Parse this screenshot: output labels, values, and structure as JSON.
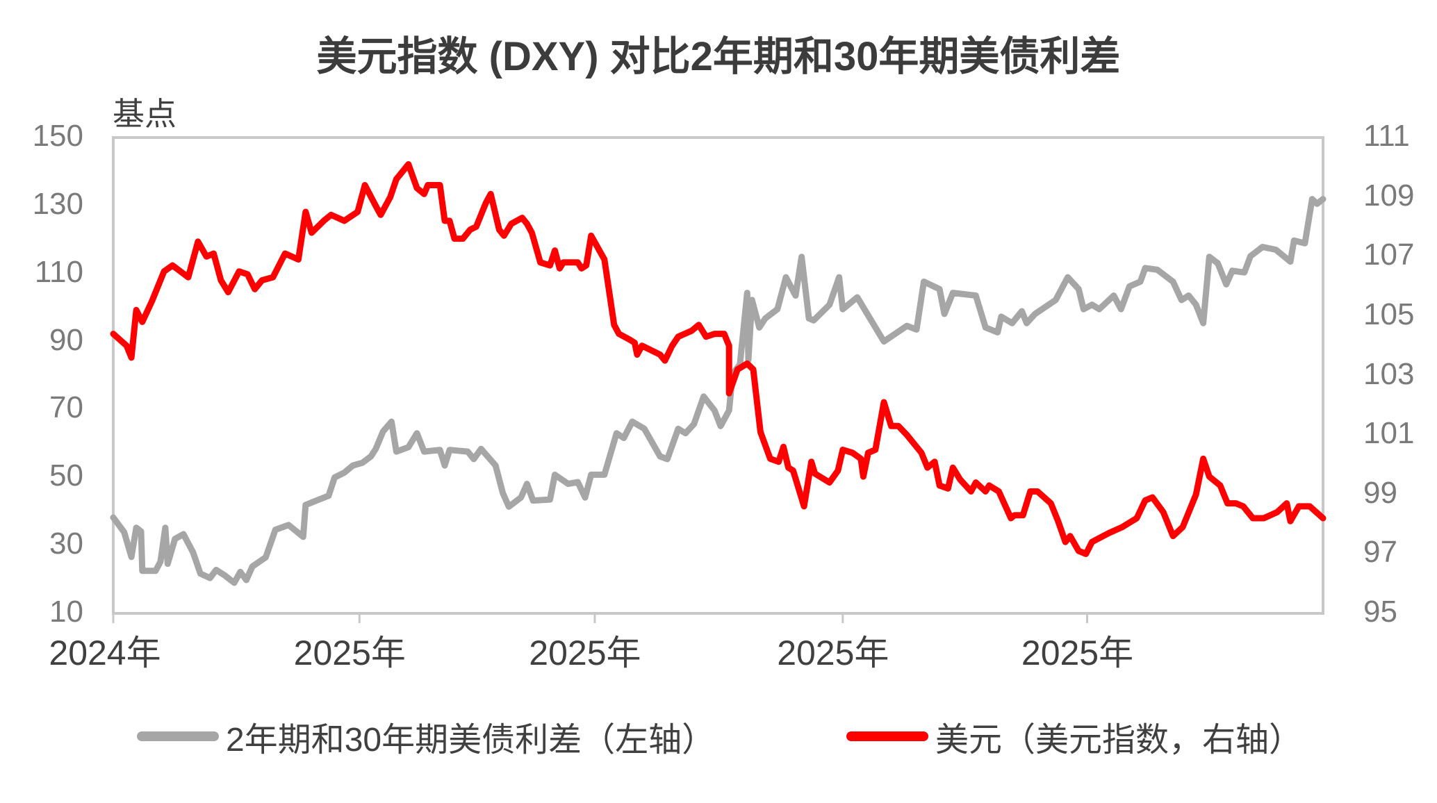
{
  "title": "美元指数 (DXY) 对比2年期和30年期美债利差",
  "left_unit": "基点",
  "colors": {
    "spread": "#a6a6a6",
    "dxy": "#ff0000",
    "frame": "#c8c8c8"
  },
  "legend": {
    "spread_label": "2年期和30年期美债利差（左轴）",
    "dxy_label": "美元（美元指数，右轴）"
  },
  "chart_data": {
    "type": "line",
    "title": "美元指数 (DXY) 对比2年期和30年期美债利差",
    "xlabel": "",
    "ylabel_left": "基点",
    "ylabel_right": "",
    "x_tick_labels": [
      "2024年",
      "2025年",
      "2025年",
      "2025年",
      "2025年"
    ],
    "x_tick_positions": [
      0.0,
      0.2035,
      0.398,
      0.603,
      0.805
    ],
    "y_left_ticks": [
      150,
      130,
      110,
      90,
      70,
      50,
      30,
      10
    ],
    "y_right_ticks": [
      111,
      109,
      107,
      105,
      103,
      101,
      99,
      97,
      95
    ],
    "y_left_range": [
      10,
      150
    ],
    "y_right_range": [
      95,
      111
    ],
    "grid": false,
    "legend_position": "bottom",
    "series": [
      {
        "name": "2年期和30年期美债利差（左轴）",
        "axis": "left",
        "color": "#a6a6a6",
        "points_x_fraction_value": [
          [
            0.0,
            38.2
          ],
          [
            0.009,
            33.9
          ],
          [
            0.015,
            26.6
          ],
          [
            0.019,
            35.2
          ],
          [
            0.023,
            34.1
          ],
          [
            0.024,
            22.5
          ],
          [
            0.035,
            22.5
          ],
          [
            0.039,
            25.2
          ],
          [
            0.043,
            35.2
          ],
          [
            0.045,
            24.6
          ],
          [
            0.051,
            31.9
          ],
          [
            0.058,
            33.3
          ],
          [
            0.066,
            27.9
          ],
          [
            0.072,
            21.7
          ],
          [
            0.08,
            20.4
          ],
          [
            0.085,
            22.8
          ],
          [
            0.092,
            21.2
          ],
          [
            0.1,
            19.0
          ],
          [
            0.105,
            22.2
          ],
          [
            0.11,
            19.8
          ],
          [
            0.115,
            23.8
          ],
          [
            0.126,
            26.5
          ],
          [
            0.134,
            34.6
          ],
          [
            0.145,
            36.0
          ],
          [
            0.157,
            32.5
          ],
          [
            0.159,
            41.9
          ],
          [
            0.168,
            43.2
          ],
          [
            0.178,
            44.6
          ],
          [
            0.183,
            50.0
          ],
          [
            0.191,
            51.4
          ],
          [
            0.198,
            53.5
          ],
          [
            0.206,
            54.3
          ],
          [
            0.213,
            56.2
          ],
          [
            0.217,
            58.4
          ],
          [
            0.223,
            63.5
          ],
          [
            0.23,
            66.4
          ],
          [
            0.234,
            57.6
          ],
          [
            0.244,
            58.9
          ],
          [
            0.251,
            63.0
          ],
          [
            0.257,
            57.6
          ],
          [
            0.27,
            58.1
          ],
          [
            0.274,
            53.5
          ],
          [
            0.278,
            58.1
          ],
          [
            0.293,
            57.6
          ],
          [
            0.298,
            55.4
          ],
          [
            0.304,
            58.4
          ],
          [
            0.316,
            53.5
          ],
          [
            0.322,
            45.4
          ],
          [
            0.327,
            41.4
          ],
          [
            0.337,
            44.1
          ],
          [
            0.342,
            48.1
          ],
          [
            0.347,
            43.2
          ],
          [
            0.361,
            43.5
          ],
          [
            0.365,
            50.8
          ],
          [
            0.376,
            48.1
          ],
          [
            0.384,
            48.6
          ],
          [
            0.39,
            44.1
          ],
          [
            0.395,
            50.8
          ],
          [
            0.406,
            50.8
          ],
          [
            0.416,
            63.0
          ],
          [
            0.422,
            61.6
          ],
          [
            0.429,
            66.4
          ],
          [
            0.439,
            64.3
          ],
          [
            0.452,
            56.2
          ],
          [
            0.458,
            55.4
          ],
          [
            0.467,
            64.3
          ],
          [
            0.473,
            63.0
          ],
          [
            0.48,
            65.7
          ],
          [
            0.488,
            73.8
          ],
          [
            0.497,
            69.7
          ],
          [
            0.502,
            65.1
          ],
          [
            0.509,
            69.7
          ],
          [
            0.512,
            80.5
          ],
          [
            0.518,
            83.2
          ],
          [
            0.524,
            104.3
          ],
          [
            0.525,
            84.6
          ],
          [
            0.528,
            102.2
          ],
          [
            0.534,
            94.1
          ],
          [
            0.539,
            96.8
          ],
          [
            0.549,
            99.5
          ],
          [
            0.556,
            108.9
          ],
          [
            0.564,
            103.5
          ],
          [
            0.569,
            114.9
          ],
          [
            0.575,
            96.8
          ],
          [
            0.579,
            96.2
          ],
          [
            0.592,
            100.8
          ],
          [
            0.6,
            108.9
          ],
          [
            0.603,
            99.5
          ],
          [
            0.615,
            103.0
          ],
          [
            0.637,
            90.0
          ],
          [
            0.656,
            94.6
          ],
          [
            0.664,
            93.5
          ],
          [
            0.67,
            107.6
          ],
          [
            0.683,
            105.4
          ],
          [
            0.687,
            98.1
          ],
          [
            0.694,
            104.3
          ],
          [
            0.713,
            103.5
          ],
          [
            0.721,
            94.1
          ],
          [
            0.731,
            92.7
          ],
          [
            0.734,
            97.3
          ],
          [
            0.743,
            95.4
          ],
          [
            0.751,
            98.9
          ],
          [
            0.755,
            95.4
          ],
          [
            0.762,
            98.1
          ],
          [
            0.779,
            102.2
          ],
          [
            0.789,
            108.9
          ],
          [
            0.798,
            105.4
          ],
          [
            0.802,
            99.5
          ],
          [
            0.809,
            100.8
          ],
          [
            0.815,
            99.5
          ],
          [
            0.827,
            103.5
          ],
          [
            0.833,
            99.5
          ],
          [
            0.84,
            106.2
          ],
          [
            0.849,
            107.6
          ],
          [
            0.853,
            111.6
          ],
          [
            0.863,
            111.1
          ],
          [
            0.876,
            107.6
          ],
          [
            0.883,
            102.2
          ],
          [
            0.889,
            103.5
          ],
          [
            0.895,
            100.8
          ],
          [
            0.901,
            95.4
          ],
          [
            0.906,
            114.9
          ],
          [
            0.913,
            113.0
          ],
          [
            0.92,
            106.8
          ],
          [
            0.925,
            110.8
          ],
          [
            0.935,
            110.3
          ],
          [
            0.94,
            115.1
          ],
          [
            0.95,
            117.8
          ],
          [
            0.961,
            117.0
          ],
          [
            0.973,
            113.5
          ],
          [
            0.976,
            119.7
          ],
          [
            0.985,
            118.9
          ],
          [
            0.991,
            131.9
          ],
          [
            0.995,
            130.5
          ],
          [
            1.0,
            131.9
          ]
        ]
      },
      {
        "name": "美元（美元指数，右轴）",
        "axis": "right",
        "color": "#ff0000",
        "points_x_fraction_value": [
          [
            0.0,
            104.4
          ],
          [
            0.011,
            104.0
          ],
          [
            0.015,
            103.6
          ],
          [
            0.019,
            105.2
          ],
          [
            0.024,
            104.8
          ],
          [
            0.032,
            105.5
          ],
          [
            0.042,
            106.5
          ],
          [
            0.049,
            106.7
          ],
          [
            0.062,
            106.3
          ],
          [
            0.07,
            107.5
          ],
          [
            0.077,
            107.0
          ],
          [
            0.083,
            107.1
          ],
          [
            0.089,
            106.2
          ],
          [
            0.095,
            105.8
          ],
          [
            0.104,
            106.5
          ],
          [
            0.111,
            106.4
          ],
          [
            0.117,
            105.9
          ],
          [
            0.123,
            106.2
          ],
          [
            0.132,
            106.3
          ],
          [
            0.142,
            107.1
          ],
          [
            0.153,
            106.9
          ],
          [
            0.159,
            108.5
          ],
          [
            0.164,
            107.8
          ],
          [
            0.174,
            108.2
          ],
          [
            0.18,
            108.4
          ],
          [
            0.191,
            108.2
          ],
          [
            0.202,
            108.5
          ],
          [
            0.208,
            109.4
          ],
          [
            0.217,
            108.7
          ],
          [
            0.221,
            108.4
          ],
          [
            0.229,
            109.0
          ],
          [
            0.234,
            109.6
          ],
          [
            0.244,
            110.1
          ],
          [
            0.251,
            109.3
          ],
          [
            0.257,
            109.1
          ],
          [
            0.26,
            109.4
          ],
          [
            0.27,
            109.4
          ],
          [
            0.274,
            108.2
          ],
          [
            0.278,
            108.2
          ],
          [
            0.282,
            107.6
          ],
          [
            0.289,
            107.6
          ],
          [
            0.295,
            107.9
          ],
          [
            0.3,
            108.0
          ],
          [
            0.308,
            108.8
          ],
          [
            0.312,
            109.1
          ],
          [
            0.319,
            107.9
          ],
          [
            0.323,
            107.7
          ],
          [
            0.329,
            108.1
          ],
          [
            0.338,
            108.3
          ],
          [
            0.342,
            108.1
          ],
          [
            0.346,
            107.8
          ],
          [
            0.353,
            106.8
          ],
          [
            0.361,
            106.7
          ],
          [
            0.365,
            107.2
          ],
          [
            0.369,
            106.6
          ],
          [
            0.372,
            106.8
          ],
          [
            0.384,
            106.8
          ],
          [
            0.387,
            106.6
          ],
          [
            0.391,
            106.7
          ],
          [
            0.395,
            107.7
          ],
          [
            0.406,
            106.9
          ],
          [
            0.414,
            104.7
          ],
          [
            0.418,
            104.4
          ],
          [
            0.427,
            104.2
          ],
          [
            0.431,
            104.1
          ],
          [
            0.433,
            103.7
          ],
          [
            0.437,
            104.0
          ],
          [
            0.452,
            103.7
          ],
          [
            0.456,
            103.5
          ],
          [
            0.462,
            104.0
          ],
          [
            0.467,
            104.3
          ],
          [
            0.478,
            104.5
          ],
          [
            0.484,
            104.7
          ],
          [
            0.49,
            104.3
          ],
          [
            0.497,
            104.4
          ],
          [
            0.505,
            104.4
          ],
          [
            0.509,
            104.0
          ],
          [
            0.509,
            102.4
          ],
          [
            0.516,
            103.2
          ],
          [
            0.524,
            103.4
          ],
          [
            0.529,
            103.2
          ],
          [
            0.535,
            101.1
          ],
          [
            0.543,
            100.2
          ],
          [
            0.55,
            100.1
          ],
          [
            0.554,
            100.6
          ],
          [
            0.558,
            99.9
          ],
          [
            0.562,
            99.8
          ],
          [
            0.571,
            98.6
          ],
          [
            0.577,
            100.1
          ],
          [
            0.58,
            99.7
          ],
          [
            0.592,
            99.4
          ],
          [
            0.599,
            99.8
          ],
          [
            0.603,
            100.5
          ],
          [
            0.611,
            100.4
          ],
          [
            0.618,
            100.2
          ],
          [
            0.62,
            99.6
          ],
          [
            0.624,
            100.4
          ],
          [
            0.63,
            100.5
          ],
          [
            0.637,
            102.1
          ],
          [
            0.643,
            101.3
          ],
          [
            0.649,
            101.3
          ],
          [
            0.656,
            101.0
          ],
          [
            0.668,
            100.4
          ],
          [
            0.673,
            99.9
          ],
          [
            0.679,
            100.1
          ],
          [
            0.683,
            99.3
          ],
          [
            0.69,
            99.2
          ],
          [
            0.694,
            99.9
          ],
          [
            0.7,
            99.5
          ],
          [
            0.709,
            99.1
          ],
          [
            0.713,
            99.4
          ],
          [
            0.721,
            99.1
          ],
          [
            0.724,
            99.3
          ],
          [
            0.732,
            99.1
          ],
          [
            0.742,
            98.2
          ],
          [
            0.745,
            98.3
          ],
          [
            0.752,
            98.3
          ],
          [
            0.758,
            99.1
          ],
          [
            0.764,
            99.1
          ],
          [
            0.775,
            98.7
          ],
          [
            0.781,
            98.1
          ],
          [
            0.787,
            97.4
          ],
          [
            0.791,
            97.6
          ],
          [
            0.798,
            97.1
          ],
          [
            0.804,
            97.0
          ],
          [
            0.809,
            97.4
          ],
          [
            0.823,
            97.7
          ],
          [
            0.834,
            97.9
          ],
          [
            0.846,
            98.2
          ],
          [
            0.853,
            98.8
          ],
          [
            0.859,
            98.9
          ],
          [
            0.868,
            98.4
          ],
          [
            0.876,
            97.6
          ],
          [
            0.884,
            97.9
          ],
          [
            0.895,
            99.0
          ],
          [
            0.901,
            100.2
          ],
          [
            0.906,
            99.6
          ],
          [
            0.915,
            99.3
          ],
          [
            0.921,
            98.7
          ],
          [
            0.928,
            98.7
          ],
          [
            0.934,
            98.6
          ],
          [
            0.942,
            98.2
          ],
          [
            0.951,
            98.2
          ],
          [
            0.962,
            98.4
          ],
          [
            0.97,
            98.7
          ],
          [
            0.973,
            98.1
          ],
          [
            0.98,
            98.6
          ],
          [
            0.989,
            98.6
          ],
          [
            1.0,
            98.2
          ]
        ]
      }
    ]
  }
}
